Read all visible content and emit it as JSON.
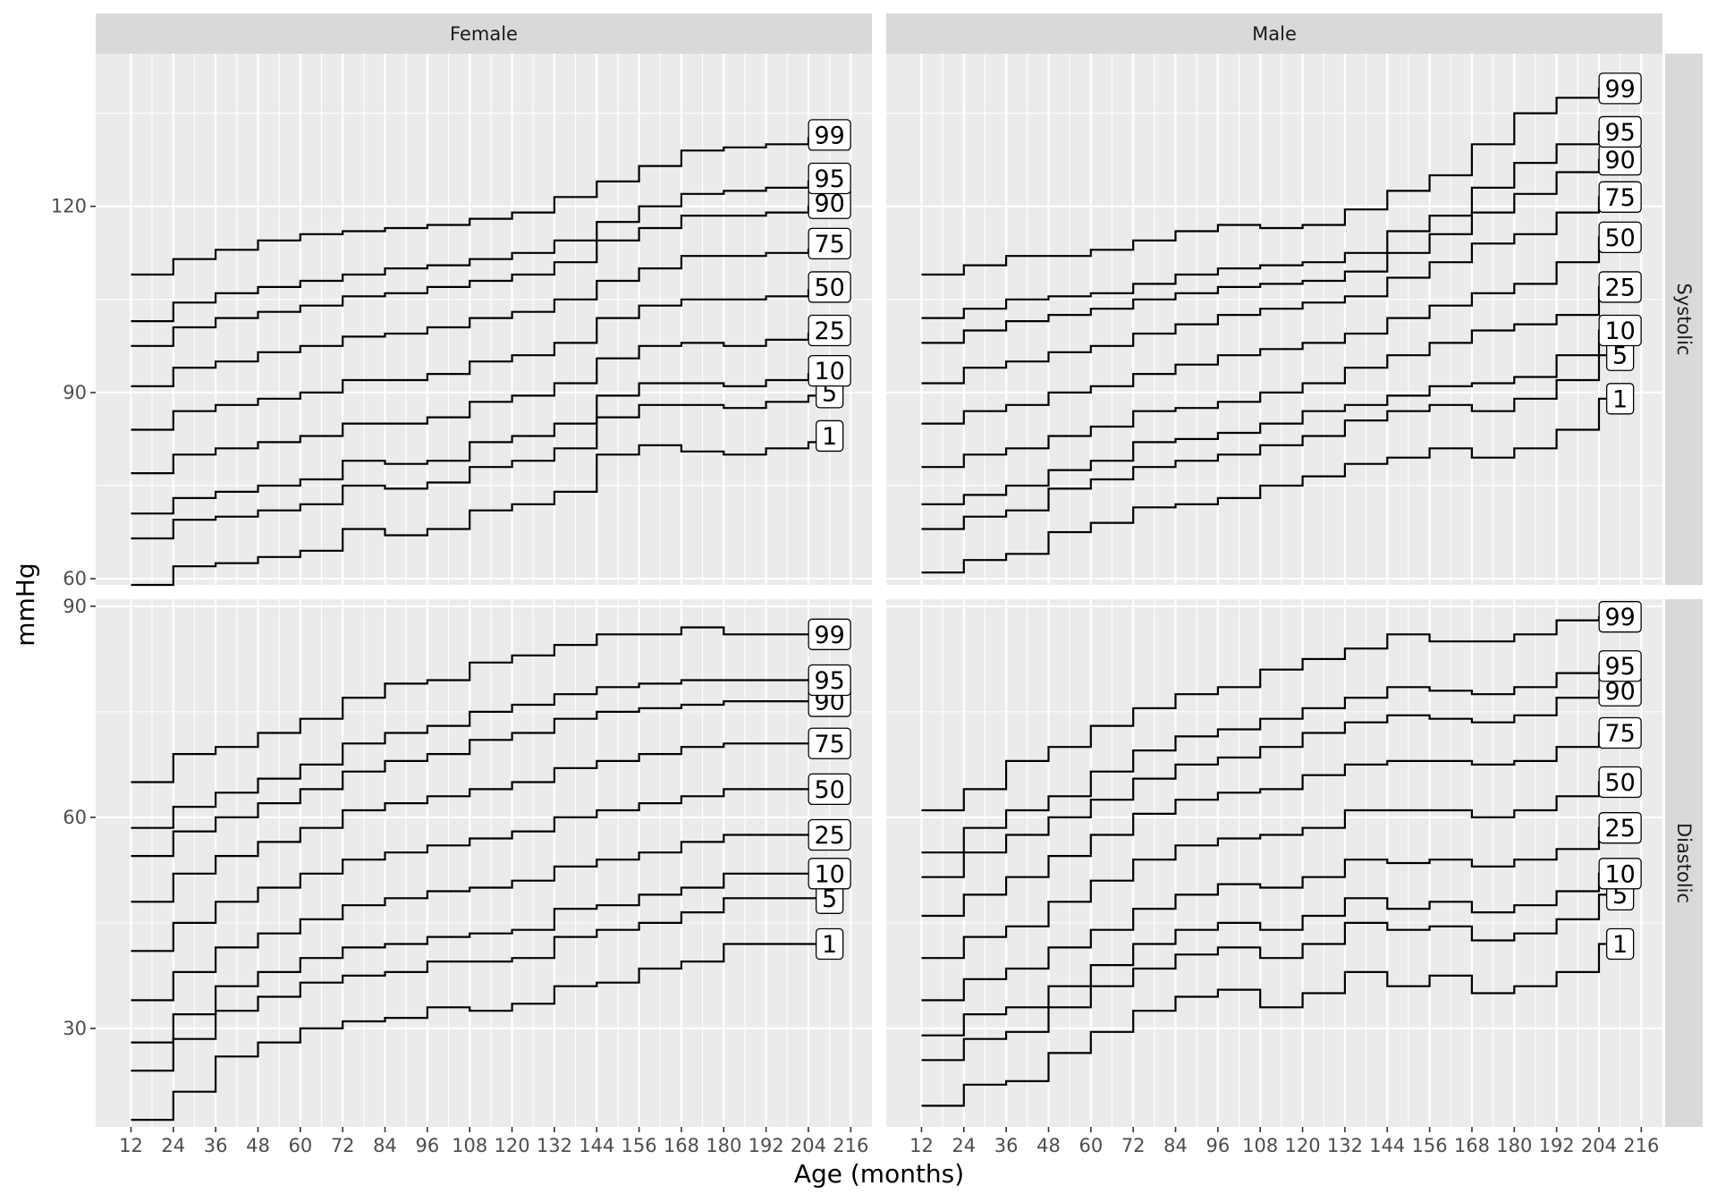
{
  "chart_data": {
    "type": "line",
    "subtype": "step",
    "xlabel": "Age (months)",
    "ylabel": "mmHg",
    "facets": {
      "columns": [
        "Female",
        "Male"
      ],
      "rows": [
        "Systolic",
        "Diastolic"
      ],
      "free_y_scales": true
    },
    "x_ticks": [
      12,
      24,
      36,
      48,
      60,
      72,
      84,
      96,
      108,
      120,
      132,
      144,
      156,
      168,
      180,
      192,
      204,
      216
    ],
    "xlim": [
      2,
      222
    ],
    "ylim": {
      "Systolic": [
        59,
        144.6
      ],
      "Diastolic": [
        16,
        91
      ]
    },
    "y_ticks": {
      "Systolic": [
        60,
        90,
        120
      ],
      "Diastolic": [
        30,
        60,
        90
      ]
    },
    "grid": true,
    "legend": "none",
    "percentiles": [
      "1",
      "5",
      "10",
      "25",
      "50",
      "75",
      "90",
      "95",
      "99"
    ],
    "step_ages": [
      12,
      24,
      36,
      48,
      60,
      72,
      84,
      96,
      108,
      120,
      132,
      144,
      156,
      168,
      180,
      192,
      204,
      210
    ],
    "panels": [
      {
        "column": "Female",
        "row": "Systolic",
        "series": [
          {
            "name": "1",
            "values": [
              59,
              62,
              62.5,
              63.5,
              64.5,
              68,
              67,
              68,
              71,
              72,
              74,
              80,
              81.5,
              80.5,
              80,
              81,
              82,
              83
            ]
          },
          {
            "name": "5",
            "values": [
              66.5,
              69.5,
              70,
              71,
              72,
              75,
              74.5,
              75.5,
              78,
              79,
              81,
              86,
              88,
              88,
              87.5,
              88.5,
              89.5,
              90
            ]
          },
          {
            "name": "10",
            "values": [
              70.5,
              73,
              74,
              75,
              76,
              79,
              78.5,
              79,
              82,
              83,
              85,
              89.5,
              91.5,
              91.5,
              91,
              92,
              93,
              93.5
            ]
          },
          {
            "name": "25",
            "values": [
              77,
              80,
              81,
              82,
              83,
              85,
              85,
              86,
              88.5,
              89.5,
              91.5,
              95.5,
              97.5,
              98,
              97.5,
              98.5,
              99.5,
              100
            ]
          },
          {
            "name": "50",
            "values": [
              84,
              87,
              88,
              89,
              90,
              92,
              92,
              93,
              95,
              96,
              98,
              102,
              104,
              105,
              105,
              105.5,
              106.5,
              107
            ]
          },
          {
            "name": "75",
            "values": [
              91,
              94,
              95,
              96.5,
              97.5,
              99,
              99.5,
              100.5,
              102,
              103,
              105,
              108,
              110,
              112,
              112,
              112.5,
              113,
              114
            ]
          },
          {
            "name": "90",
            "values": [
              97.5,
              100.5,
              102,
              103,
              104,
              105.5,
              106,
              107,
              108,
              109,
              111,
              114.5,
              116.5,
              118.5,
              118.5,
              119,
              120,
              120.5
            ]
          },
          {
            "name": "95",
            "values": [
              101.5,
              104.5,
              106,
              107,
              108,
              109,
              110,
              110.5,
              111.5,
              112.5,
              114.5,
              117.5,
              120,
              122,
              122.5,
              123,
              124,
              124.5
            ]
          },
          {
            "name": "99",
            "values": [
              109,
              111.5,
              113,
              114.5,
              115.5,
              116,
              116.5,
              117,
              118,
              119,
              121.5,
              124,
              126.5,
              129,
              129.5,
              130,
              131,
              131.5
            ]
          }
        ]
      },
      {
        "column": "Male",
        "row": "Systolic",
        "series": [
          {
            "name": "1",
            "values": [
              61,
              63,
              64,
              67.5,
              69,
              71.5,
              72,
              73,
              75,
              76.5,
              78.5,
              79.5,
              81,
              79.5,
              81,
              84,
              89,
              89
            ]
          },
          {
            "name": "5",
            "values": [
              68,
              70,
              71,
              74.5,
              76,
              78,
              79,
              80,
              81.5,
              83,
              85.5,
              87,
              88,
              87,
              89,
              92,
              96,
              96
            ]
          },
          {
            "name": "10",
            "values": [
              72,
              73.5,
              75,
              77.5,
              79,
              82,
              82.5,
              83.5,
              85,
              87,
              88,
              89.5,
              91,
              91.5,
              92.5,
              96,
              100,
              100
            ]
          },
          {
            "name": "25",
            "values": [
              78,
              80,
              81,
              83,
              84.5,
              87,
              87.5,
              88.5,
              90,
              91.5,
              94,
              96,
              98,
              100,
              101,
              102.5,
              107,
              107
            ]
          },
          {
            "name": "50",
            "values": [
              85,
              87,
              88,
              90,
              91,
              93,
              94.5,
              96,
              97,
              98,
              99.5,
              102,
              104,
              106,
              107.5,
              111,
              115,
              115
            ]
          },
          {
            "name": "75",
            "values": [
              91.5,
              94,
              95,
              96.5,
              97.5,
              99.5,
              101,
              102.5,
              103.5,
              104.5,
              105.5,
              108.5,
              111,
              114,
              115.5,
              119,
              121.5,
              121.5
            ]
          },
          {
            "name": "90",
            "values": [
              98,
              100,
              101.5,
              102.5,
              103.5,
              105,
              106,
              107,
              107.5,
              108,
              109.5,
              112.5,
              115.5,
              119,
              122,
              125.5,
              127.5,
              127.5
            ]
          },
          {
            "name": "95",
            "values": [
              102,
              103.5,
              105,
              105.5,
              106,
              107.5,
              109,
              110,
              110.5,
              111,
              112.5,
              116,
              118.5,
              123,
              127,
              130,
              132,
              132
            ]
          },
          {
            "name": "99",
            "values": [
              109,
              110.5,
              112,
              112,
              113,
              114.5,
              116,
              117,
              116.5,
              117,
              119.5,
              122.5,
              125,
              130,
              135,
              137.5,
              139,
              139
            ]
          }
        ]
      },
      {
        "column": "Female",
        "row": "Diastolic",
        "series": [
          {
            "name": "1",
            "values": [
              17,
              21,
              26,
              28,
              30,
              31,
              31.5,
              33,
              32.5,
              33.5,
              36,
              36.5,
              38.5,
              39.5,
              42,
              42,
              42,
              42
            ]
          },
          {
            "name": "5",
            "values": [
              24,
              28.5,
              32.5,
              34.5,
              36.5,
              37.5,
              38,
              39.5,
              39.5,
              40,
              43,
              44,
              45,
              46.5,
              48.5,
              48.5,
              48.5,
              48.5
            ]
          },
          {
            "name": "10",
            "values": [
              28,
              32,
              36,
              38,
              40,
              41.5,
              42,
              43,
              43.5,
              44,
              47,
              47.5,
              49,
              50,
              52,
              52,
              52,
              52
            ]
          },
          {
            "name": "25",
            "values": [
              34,
              38,
              41.5,
              43.5,
              45.5,
              47.5,
              48.5,
              49.5,
              50,
              51,
              53,
              54,
              55,
              56.5,
              57.5,
              57.5,
              57.5,
              57.5
            ]
          },
          {
            "name": "50",
            "values": [
              41,
              45,
              48,
              50,
              52,
              54,
              55,
              56,
              57,
              58,
              60,
              61,
              62,
              63,
              64,
              64,
              64,
              64
            ]
          },
          {
            "name": "75",
            "values": [
              48,
              52,
              54.5,
              56.5,
              58.5,
              61,
              62,
              63,
              64,
              65,
              67,
              68,
              69,
              70,
              70.5,
              70.5,
              70.5,
              70.5
            ]
          },
          {
            "name": "90",
            "values": [
              54.5,
              58,
              60,
              62,
              64,
              66.5,
              68,
              69,
              71,
              72,
              74,
              75,
              75.5,
              76,
              76.5,
              76.5,
              76.5,
              76.5
            ]
          },
          {
            "name": "95",
            "values": [
              58.5,
              61.5,
              63.5,
              65.5,
              67.5,
              70.5,
              72,
              73,
              75,
              76,
              77.5,
              78.5,
              79,
              79.5,
              79.5,
              79.5,
              79.5,
              79.5
            ]
          },
          {
            "name": "99",
            "values": [
              65,
              69,
              70,
              72,
              74,
              77,
              79,
              79.5,
              82,
              83,
              84.5,
              86,
              86,
              87,
              86,
              86,
              86,
              86
            ]
          }
        ]
      },
      {
        "column": "Male",
        "row": "Diastolic",
        "series": [
          {
            "name": "1",
            "values": [
              19,
              22,
              22.5,
              26.5,
              29.5,
              32.5,
              34.5,
              35.5,
              33,
              35,
              38,
              36,
              37.5,
              35,
              36,
              38,
              42,
              42
            ]
          },
          {
            "name": "5",
            "values": [
              25.5,
              28.5,
              29.5,
              33,
              36,
              38.5,
              40.5,
              41.5,
              40,
              42,
              45,
              44,
              44.5,
              42.5,
              43.5,
              45.5,
              49,
              49
            ]
          },
          {
            "name": "10",
            "values": [
              29,
              32,
              33,
              36,
              39,
              42,
              44,
              45,
              44,
              46,
              48.5,
              47,
              48,
              46.5,
              47.5,
              49.5,
              52,
              52
            ]
          },
          {
            "name": "25",
            "values": [
              34,
              37,
              38.5,
              41.5,
              44,
              47,
              49,
              50.5,
              50,
              51.5,
              54,
              53.5,
              54,
              53,
              54,
              55.5,
              58.5,
              58.5
            ]
          },
          {
            "name": "50",
            "values": [
              40,
              43,
              44.5,
              48,
              51,
              54,
              56,
              57,
              57.5,
              58.5,
              61,
              61,
              61,
              60,
              61,
              63,
              65,
              65
            ]
          },
          {
            "name": "75",
            "values": [
              46,
              49,
              51.5,
              54.5,
              57.5,
              60.5,
              62.5,
              63.5,
              64,
              66,
              67.5,
              68,
              68,
              67.5,
              68,
              70,
              72,
              72
            ]
          },
          {
            "name": "90",
            "values": [
              51.5,
              55,
              57.5,
              60,
              62.5,
              65.5,
              67.5,
              68.5,
              70,
              72,
              73.5,
              74.5,
              74,
              73.5,
              74.5,
              77,
              78,
              78
            ]
          },
          {
            "name": "95",
            "values": [
              55,
              58.5,
              61,
              63,
              66.5,
              69.5,
              71.5,
              72.5,
              74,
              75.5,
              77,
              78.5,
              78,
              77.5,
              78.5,
              80.5,
              81.5,
              81.5
            ]
          },
          {
            "name": "99",
            "values": [
              61,
              64,
              68,
              70,
              73,
              75.5,
              77.5,
              78.5,
              81,
              82.5,
              84,
              86,
              85,
              85,
              86,
              88,
              88.5,
              88.5
            ]
          }
        ]
      }
    ]
  }
}
